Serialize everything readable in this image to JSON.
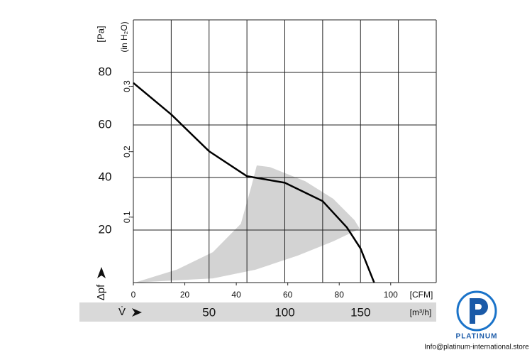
{
  "chart_data": {
    "type": "line",
    "y_unit_label": "[Pa]",
    "y2_unit_label": "(in H₂O)",
    "y_symbol": "Δpf",
    "x_unit_label": "[m³/h]",
    "x2_unit_label": "[CFM]",
    "x_symbol": "V̇",
    "xlim": [
      0,
      200
    ],
    "xticks": [
      50,
      100,
      150
    ],
    "xgrid": [
      0,
      25,
      50,
      75,
      100,
      125,
      150,
      175,
      200
    ],
    "x2lim": [
      0,
      117.7
    ],
    "x2ticks": [
      0,
      20,
      40,
      60,
      80,
      100
    ],
    "ylim": [
      0,
      100
    ],
    "yticks": [
      20,
      40,
      60,
      80
    ],
    "y2lim": [
      0,
      0.4015
    ],
    "y2ticks": [
      {
        "value": 0.1,
        "label": "0,1"
      },
      {
        "value": 0.2,
        "label": "0,2"
      },
      {
        "value": 0.3,
        "label": "0,3"
      }
    ],
    "series": [
      {
        "color": "#000000",
        "x": [
          0,
          25,
          50,
          75,
          100,
          125,
          141,
          150,
          159
        ],
        "values": [
          76,
          64,
          50,
          40.5,
          38,
          31,
          21,
          13,
          0
        ]
      }
    ],
    "region": {
      "color": "#d3d3d3",
      "x": [
        1,
        29,
        52.5,
        71,
        78,
        81.5,
        90,
        113.4,
        132,
        146,
        149.5,
        132,
        108.7,
        80.6,
        52.5
      ],
      "values": [
        0,
        5,
        11.6,
        22.4,
        36.8,
        44.6,
        44,
        38.6,
        31.9,
        23.8,
        20.5,
        15.7,
        10.3,
        4.9,
        1.6
      ]
    }
  },
  "watermark": {
    "brand": "PLATINUM",
    "email": "Info@platinum-international.store"
  }
}
